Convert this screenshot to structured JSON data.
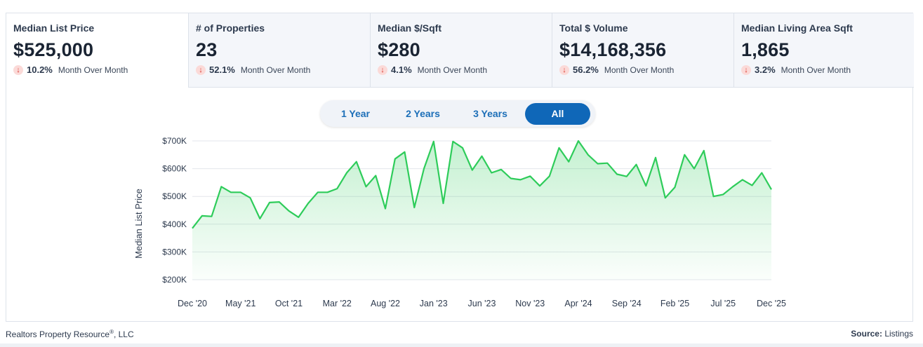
{
  "tabs": [
    {
      "label": "Median List Price",
      "value": "$525,000",
      "change": "10.2%",
      "period": "Month Over Month",
      "direction": "down",
      "active": true
    },
    {
      "label": "# of Properties",
      "value": "23",
      "change": "52.1%",
      "period": "Month Over Month",
      "direction": "down",
      "active": false
    },
    {
      "label": "Median $/Sqft",
      "value": "$280",
      "change": "4.1%",
      "period": "Month Over Month",
      "direction": "down",
      "active": false
    },
    {
      "label": "Total $ Volume",
      "value": "$14,168,356",
      "change": "56.2%",
      "period": "Month Over Month",
      "direction": "down",
      "active": false
    },
    {
      "label": "Median Living Area Sqft",
      "value": "1,865",
      "change": "3.2%",
      "period": "Month Over Month",
      "direction": "down",
      "active": false
    }
  ],
  "range": {
    "options": [
      "1 Year",
      "2 Years",
      "3 Years",
      "All"
    ],
    "selected": "All"
  },
  "chart_data": {
    "type": "area",
    "ylabel": "Median List Price",
    "xlabel": "",
    "ylim": [
      200000,
      700000
    ],
    "yticks": [
      200000,
      300000,
      400000,
      500000,
      600000,
      700000
    ],
    "ytick_labels": [
      "$200K",
      "$300K",
      "$400K",
      "$500K",
      "$600K",
      "$700K"
    ],
    "xtick_labels": [
      "Dec '20",
      "May '21",
      "Oct '21",
      "Mar '22",
      "Aug '22",
      "Jan '23",
      "Jun '23",
      "Nov '23",
      "Apr '24",
      "Sep '24",
      "Feb '25",
      "Jul '25",
      "Dec '25"
    ],
    "grid": true,
    "line_color": "#2ecc5a",
    "fill_color": "#2ecc5a",
    "series": [
      {
        "values": [
          385000,
          430000,
          428000,
          535000,
          515000,
          515000,
          495000,
          420000,
          478000,
          480000,
          448000,
          425000,
          475000,
          515000,
          515000,
          528000,
          585000,
          625000,
          535000,
          575000,
          456000,
          635000,
          660000,
          460000,
          600000,
          698000,
          475000,
          698000,
          675000,
          595000,
          645000,
          585000,
          597000,
          565000,
          560000,
          573000,
          538000,
          573000,
          675000,
          625000,
          700000,
          650000,
          618000,
          620000,
          580000,
          572000,
          615000,
          538000,
          640000,
          495000,
          533000,
          650000,
          600000,
          665000,
          500000,
          507000,
          535000,
          560000,
          540000,
          585000,
          525000
        ]
      }
    ]
  },
  "footer": {
    "company": "Realtors Property Resource",
    "reg": "®",
    "company_suffix": ", LLC",
    "source_label": "Source:",
    "source_value": "Listings"
  }
}
